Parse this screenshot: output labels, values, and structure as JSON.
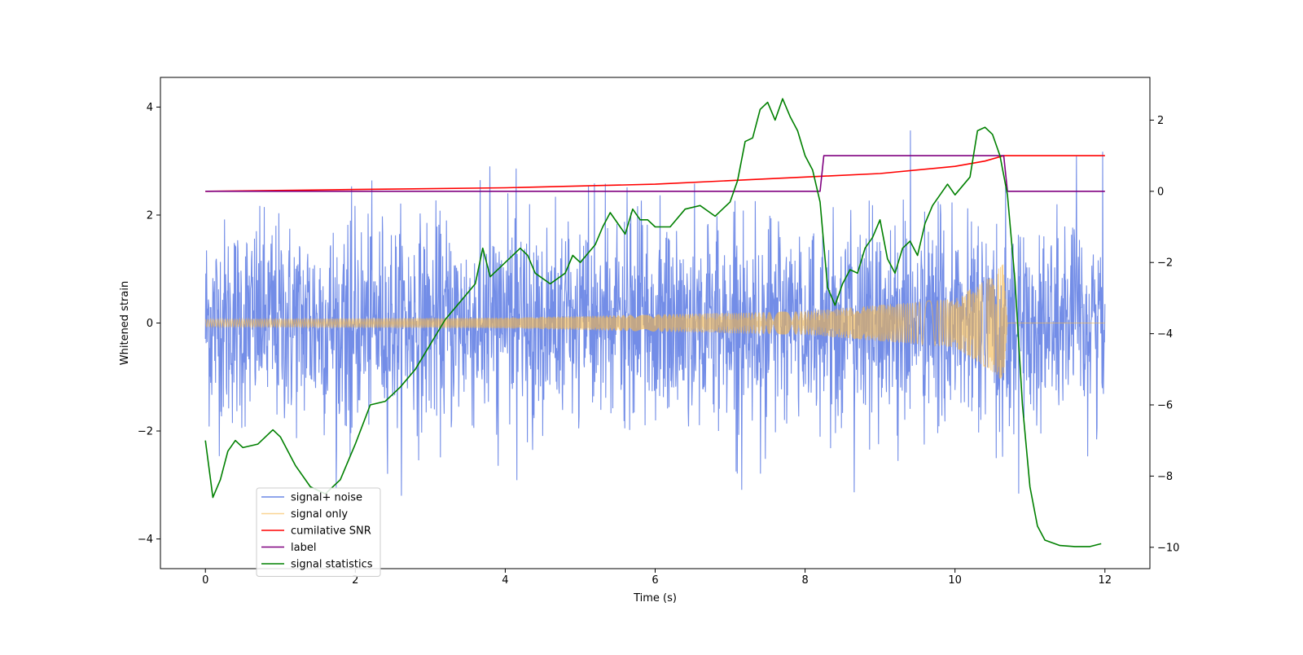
{
  "chart_data": {
    "type": "line",
    "title": "",
    "xlabel": "Time (s)",
    "ylabel": "Whitened strain",
    "ylabel_right": "",
    "xlim": [
      -0.6,
      12.6
    ],
    "ylim": [
      -4.55,
      4.55
    ],
    "ylim_right": [
      -10.6,
      3.2
    ],
    "grid": false,
    "legend_position": "lower-left",
    "x_ticks": [
      0,
      2,
      4,
      6,
      8,
      10,
      12
    ],
    "x_tick_labels": [
      "0",
      "2",
      "4",
      "6",
      "8",
      "10",
      "12"
    ],
    "y_ticks": [
      -4,
      -2,
      0,
      2,
      4
    ],
    "y_tick_labels": [
      "−4",
      "−2",
      "0",
      "2",
      "4"
    ],
    "y_right_ticks": [
      -10,
      -8,
      -6,
      -4,
      -2,
      0,
      2
    ],
    "y_right_tick_labels": [
      "−10",
      "−8",
      "−6",
      "−4",
      "−2",
      "0",
      "2"
    ],
    "series": [
      {
        "name": "signal+ noise",
        "axis": "left",
        "color": "#6b87e6",
        "style": "noise",
        "t_range": [
          0,
          12
        ],
        "samples": 2400,
        "noise_std": 1.0,
        "envelope_max": [
          2.2,
          2.6,
          3.0,
          3.3,
          3.0,
          3.1,
          3.4,
          3.2,
          3.0,
          3.2,
          3.1,
          3.5,
          4.2,
          3.3,
          3.5
        ]
      },
      {
        "name": "signal only",
        "axis": "left",
        "color": "#f5b74a",
        "style": "chirp",
        "t_range": [
          0,
          12
        ],
        "merger_time": 10.65,
        "amplitude_points": [
          [
            0,
            0.07
          ],
          [
            4,
            0.1
          ],
          [
            8,
            0.22
          ],
          [
            10,
            0.45
          ],
          [
            10.5,
            0.9
          ],
          [
            10.65,
            1.1
          ],
          [
            10.7,
            0.0
          ],
          [
            12,
            0.0
          ]
        ]
      },
      {
        "name": "cumilative SNR",
        "axis": "right",
        "color": "#ff0000",
        "points": [
          [
            0,
            0.0
          ],
          [
            2,
            0.05
          ],
          [
            4,
            0.1
          ],
          [
            6,
            0.2
          ],
          [
            7,
            0.3
          ],
          [
            8,
            0.4
          ],
          [
            9,
            0.5
          ],
          [
            10,
            0.7
          ],
          [
            10.4,
            0.85
          ],
          [
            10.65,
            1.0
          ],
          [
            12,
            1.0
          ]
        ]
      },
      {
        "name": "label",
        "axis": "right",
        "color": "#800080",
        "points": [
          [
            0,
            0
          ],
          [
            8.2,
            0
          ],
          [
            8.25,
            1
          ],
          [
            10.65,
            1
          ],
          [
            10.7,
            0
          ],
          [
            12,
            0
          ]
        ]
      },
      {
        "name": "signal statistics",
        "axis": "right",
        "color": "#008000",
        "points": [
          [
            0,
            -7.0
          ],
          [
            0.1,
            -8.6
          ],
          [
            0.2,
            -8.1
          ],
          [
            0.3,
            -7.3
          ],
          [
            0.4,
            -7.0
          ],
          [
            0.5,
            -7.2
          ],
          [
            0.7,
            -7.1
          ],
          [
            0.9,
            -6.7
          ],
          [
            1.0,
            -6.9
          ],
          [
            1.2,
            -7.7
          ],
          [
            1.4,
            -8.3
          ],
          [
            1.6,
            -8.5
          ],
          [
            1.8,
            -8.1
          ],
          [
            2.0,
            -7.1
          ],
          [
            2.2,
            -6.0
          ],
          [
            2.4,
            -5.9
          ],
          [
            2.6,
            -5.5
          ],
          [
            2.8,
            -5.0
          ],
          [
            3.0,
            -4.3
          ],
          [
            3.2,
            -3.6
          ],
          [
            3.4,
            -3.1
          ],
          [
            3.6,
            -2.6
          ],
          [
            3.7,
            -1.6
          ],
          [
            3.8,
            -2.4
          ],
          [
            4.0,
            -2.0
          ],
          [
            4.2,
            -1.6
          ],
          [
            4.3,
            -1.8
          ],
          [
            4.4,
            -2.3
          ],
          [
            4.6,
            -2.6
          ],
          [
            4.8,
            -2.3
          ],
          [
            4.9,
            -1.8
          ],
          [
            5.0,
            -2.0
          ],
          [
            5.2,
            -1.5
          ],
          [
            5.3,
            -1.0
          ],
          [
            5.4,
            -0.6
          ],
          [
            5.6,
            -1.2
          ],
          [
            5.7,
            -0.5
          ],
          [
            5.8,
            -0.8
          ],
          [
            5.9,
            -0.8
          ],
          [
            6.0,
            -1.0
          ],
          [
            6.2,
            -1.0
          ],
          [
            6.4,
            -0.5
          ],
          [
            6.6,
            -0.4
          ],
          [
            6.8,
            -0.7
          ],
          [
            7.0,
            -0.3
          ],
          [
            7.1,
            0.3
          ],
          [
            7.2,
            1.4
          ],
          [
            7.3,
            1.5
          ],
          [
            7.4,
            2.3
          ],
          [
            7.5,
            2.5
          ],
          [
            7.6,
            2.0
          ],
          [
            7.7,
            2.6
          ],
          [
            7.8,
            2.1
          ],
          [
            7.9,
            1.7
          ],
          [
            8.0,
            1.0
          ],
          [
            8.1,
            0.6
          ],
          [
            8.2,
            -0.3
          ],
          [
            8.3,
            -2.7
          ],
          [
            8.4,
            -3.2
          ],
          [
            8.5,
            -2.6
          ],
          [
            8.6,
            -2.2
          ],
          [
            8.7,
            -2.3
          ],
          [
            8.8,
            -1.6
          ],
          [
            8.9,
            -1.3
          ],
          [
            9.0,
            -0.8
          ],
          [
            9.1,
            -1.9
          ],
          [
            9.2,
            -2.3
          ],
          [
            9.3,
            -1.6
          ],
          [
            9.4,
            -1.4
          ],
          [
            9.5,
            -1.8
          ],
          [
            9.6,
            -0.9
          ],
          [
            9.7,
            -0.4
          ],
          [
            9.8,
            -0.1
          ],
          [
            9.9,
            0.2
          ],
          [
            10.0,
            -0.1
          ],
          [
            10.2,
            0.4
          ],
          [
            10.3,
            1.7
          ],
          [
            10.4,
            1.8
          ],
          [
            10.5,
            1.6
          ],
          [
            10.6,
            1.0
          ],
          [
            10.7,
            -0.1
          ],
          [
            10.8,
            -2.5
          ],
          [
            10.9,
            -6.0
          ],
          [
            11.0,
            -8.3
          ],
          [
            11.1,
            -9.4
          ],
          [
            11.2,
            -9.8
          ],
          [
            11.4,
            -9.95
          ],
          [
            11.6,
            -9.98
          ],
          [
            11.8,
            -9.98
          ],
          [
            11.95,
            -9.9
          ]
        ]
      }
    ]
  }
}
